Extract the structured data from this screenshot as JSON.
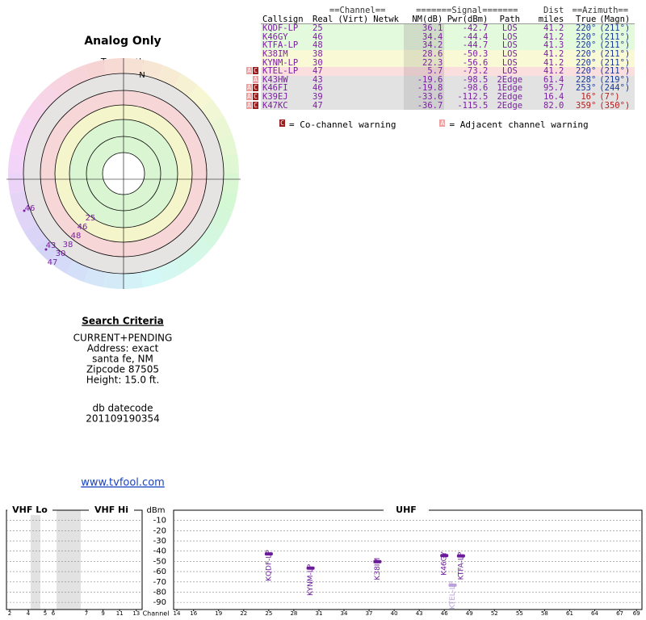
{
  "title": "Analog Only",
  "table": {
    "group_headers": [
      "==Channel==",
      "=======Signal=======",
      "Dist",
      "==Azimuth=="
    ],
    "columns": [
      "Callsign",
      "Real",
      "(Virt)",
      "Netwk",
      "NM(dB)",
      "Pwr(dBm)",
      "Path",
      "miles",
      "True",
      "(Magn)"
    ],
    "rows": [
      {
        "callsign": "KQDF-LP",
        "real": "25",
        "nm": "36.1",
        "pwr": "-42.7",
        "path": "LOS",
        "dist": "41.2",
        "true": "220°",
        "magn": "(211°)"
      },
      {
        "callsign": "K46GY",
        "real": "46",
        "nm": "34.4",
        "pwr": "-44.4",
        "path": "LOS",
        "dist": "41.2",
        "true": "220°",
        "magn": "(211°)"
      },
      {
        "callsign": "KTFA-LP",
        "real": "48",
        "nm": "34.2",
        "pwr": "-44.7",
        "path": "LOS",
        "dist": "41.3",
        "true": "220°",
        "magn": "(211°)"
      },
      {
        "callsign": "K38IM",
        "real": "38",
        "nm": "28.6",
        "pwr": "-50.3",
        "path": "LOS",
        "dist": "41.2",
        "true": "220°",
        "magn": "(211°)"
      },
      {
        "callsign": "KYNM-LP",
        "real": "30",
        "nm": "22.3",
        "pwr": "-56.6",
        "path": "LOS",
        "dist": "41.2",
        "true": "220°",
        "magn": "(211°)"
      },
      {
        "warnings": [
          "A",
          "C"
        ],
        "callsign": "KTEL-LP",
        "real": "47",
        "nm": "5.7",
        "pwr": "-73.2",
        "path": "LOS",
        "dist": "41.2",
        "true": "220°",
        "magn": "(211°)"
      },
      {
        "warnings": [
          "A"
        ],
        "callsign": "K43HW",
        "real": "43",
        "nm": "-19.6",
        "pwr": "-98.5",
        "path": "2Edge",
        "dist": "61.4",
        "true": "228°",
        "magn": "(219°)"
      },
      {
        "warnings": [
          "A",
          "C"
        ],
        "callsign": "K46FI",
        "real": "46",
        "nm": "-19.8",
        "pwr": "-98.6",
        "path": "1Edge",
        "dist": "95.7",
        "true": "253°",
        "magn": "(244°)"
      },
      {
        "warnings": [
          "A",
          "C"
        ],
        "callsign": "K39EJ",
        "real": "39",
        "nm": "-33.6",
        "pwr": "-112.5",
        "path": "2Edge",
        "dist": "16.4",
        "true": "16°",
        "magn": "(7°)"
      },
      {
        "warnings": [
          "A",
          "C"
        ],
        "callsign": "K47KC",
        "real": "47",
        "nm": "-36.7",
        "pwr": "-115.5",
        "path": "2Edge",
        "dist": "82.0",
        "true": "359°",
        "magn": "(350°)"
      }
    ]
  },
  "legend": {
    "co_icon": "C",
    "co_text": "= Co-channel warning",
    "adj_icon": "A",
    "adj_text": "= Adjacent channel warning"
  },
  "polar": {
    "north_label": "TrueNorth",
    "north": "N",
    "labels": [
      "25",
      "46",
      "48",
      "38",
      "30",
      "47",
      "43",
      "46"
    ]
  },
  "criteria": {
    "heading": "Search Criteria",
    "lines": [
      "CURRENT+PENDING",
      "Address: exact",
      "santa fe, NM",
      "Zipcode 87505",
      "Height: 15.0 ft."
    ],
    "datecode_label": "db datecode",
    "datecode": "201109190354"
  },
  "link": "www.tvfool.com",
  "chart_data": {
    "type": "scatter",
    "sections": [
      "VHF Lo",
      "VHF Hi",
      "UHF"
    ],
    "y_label": "dBm",
    "x_label": "Channel",
    "xlim": [
      2,
      69
    ],
    "xticks": [
      2,
      4,
      5,
      6,
      7,
      9,
      11,
      13,
      14,
      16,
      19,
      22,
      25,
      28,
      31,
      34,
      37,
      40,
      43,
      46,
      49,
      52,
      55,
      58,
      61,
      64,
      67,
      69
    ],
    "ylim": [
      -97,
      0
    ],
    "yticks": [
      -10,
      -20,
      -30,
      -40,
      -50,
      -60,
      -70,
      -80,
      -90
    ],
    "grid": true,
    "labels": [
      "KQDF-LP",
      "KYNM-LP",
      "K38IM",
      "K46GY",
      "KTFA-LP",
      "KTEL-LP"
    ],
    "x": [
      25,
      30,
      38,
      46,
      48,
      47
    ],
    "values": [
      -42.7,
      -56.6,
      -50.3,
      -44.4,
      -44.7,
      -73.2
    ],
    "colors": [
      "#6a1b9a",
      "#6a1b9a",
      "#6a1b9a",
      "#6a1b9a",
      "#6a1b9a",
      "#b9a0d8"
    ]
  }
}
